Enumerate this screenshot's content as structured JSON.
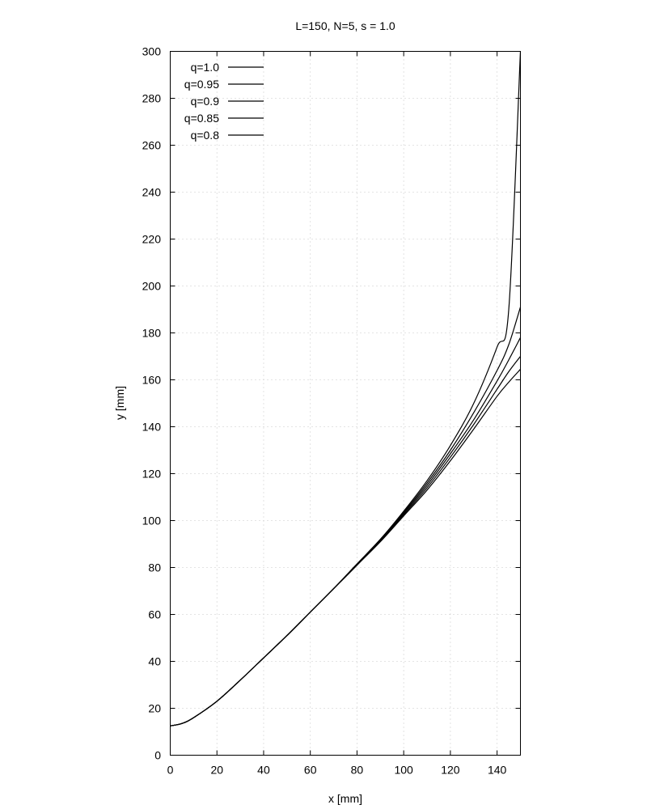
{
  "chart_data": {
    "type": "line",
    "title": "L=150, N=5, s = 1.0",
    "xlabel": "x [mm]",
    "ylabel": "y [mm]",
    "xlim": [
      0,
      150
    ],
    "ylim": [
      0,
      300
    ],
    "xticks": [
      0,
      20,
      40,
      60,
      80,
      100,
      120,
      140
    ],
    "yticks": [
      0,
      20,
      40,
      60,
      80,
      100,
      120,
      140,
      160,
      180,
      200,
      220,
      240,
      260,
      280,
      300
    ],
    "grid": true,
    "legend_position": "top-left",
    "x": [
      0,
      5,
      10,
      20,
      30,
      40,
      50,
      60,
      70,
      80,
      90,
      100,
      110,
      120,
      130,
      140,
      145,
      150
    ],
    "series": [
      {
        "name": "q=1.0",
        "color": "#000000",
        "values": [
          12.5,
          13.5,
          16,
          23,
          32,
          41.5,
          51,
          61,
          71,
          81.5,
          92,
          104,
          117,
          132,
          150,
          174,
          190,
          300
        ]
      },
      {
        "name": "q=0.95",
        "color": "#000000",
        "values": [
          12.5,
          13.5,
          16,
          23,
          32,
          41.5,
          51,
          61,
          71,
          81.5,
          92,
          103.5,
          116,
          130,
          146,
          164,
          175,
          191
        ]
      },
      {
        "name": "q=0.9",
        "color": "#000000",
        "values": [
          12.5,
          13.5,
          16,
          23,
          32,
          41.5,
          51,
          61,
          71,
          81.5,
          91.5,
          103,
          115,
          128.5,
          143,
          159.5,
          168.5,
          178
        ]
      },
      {
        "name": "q=0.85",
        "color": "#000000",
        "values": [
          12.5,
          13.5,
          16,
          23,
          32,
          41.5,
          51,
          61,
          71,
          81,
          91.5,
          102.5,
          114,
          127,
          141,
          156,
          163.5,
          170
        ]
      },
      {
        "name": "q=0.8",
        "color": "#000000",
        "values": [
          12.5,
          13.5,
          16,
          23,
          32,
          41.5,
          51,
          61,
          71,
          81,
          91,
          102,
          113,
          125.5,
          139,
          153,
          159,
          164.5
        ]
      }
    ]
  }
}
